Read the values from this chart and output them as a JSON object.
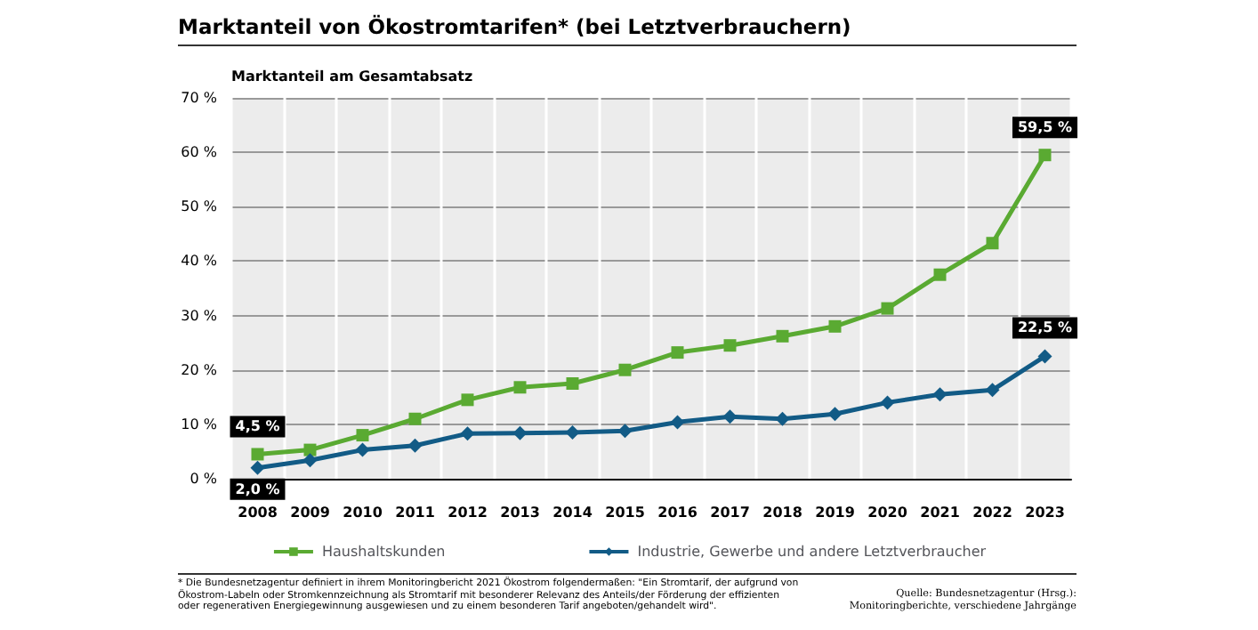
{
  "chart_data": {
    "type": "line",
    "title": "Marktanteil von Ökostromtarifen* (bei Letztverbrauchern)",
    "ylabel": "Marktanteil am Gesamtabsatz",
    "categories": [
      "2008",
      "2009",
      "2010",
      "2011",
      "2012",
      "2013",
      "2014",
      "2015",
      "2016",
      "2017",
      "2018",
      "2019",
      "2020",
      "2021",
      "2022",
      "2023"
    ],
    "series": [
      {
        "name": "Haushaltskunden",
        "color": "#5aaa32",
        "marker": "square",
        "values": [
          4.5,
          5.3,
          8.0,
          11.0,
          14.5,
          16.8,
          17.5,
          20.0,
          23.2,
          24.5,
          26.2,
          28.0,
          31.3,
          37.5,
          43.3,
          59.5
        ],
        "value_labels": [
          "4,5 %",
          null,
          null,
          null,
          null,
          null,
          null,
          null,
          null,
          null,
          null,
          null,
          null,
          null,
          null,
          "59,5 %"
        ]
      },
      {
        "name": "Industrie, Gewerbe und andere Letztverbraucher",
        "color": "#125b86",
        "marker": "diamond",
        "values": [
          2.0,
          3.4,
          5.3,
          6.1,
          8.3,
          8.4,
          8.5,
          8.8,
          10.4,
          11.4,
          11.0,
          11.9,
          14.0,
          15.5,
          16.3,
          22.5
        ],
        "value_labels": [
          "2,0 %",
          null,
          null,
          null,
          null,
          null,
          null,
          null,
          null,
          null,
          null,
          null,
          null,
          null,
          null,
          "22,5 %"
        ]
      }
    ],
    "ylim": [
      0,
      70
    ],
    "yticks": [
      {
        "value": 0,
        "label": "0 %"
      },
      {
        "value": 10,
        "label": "10 %"
      },
      {
        "value": 20,
        "label": "20 %"
      },
      {
        "value": 30,
        "label": "30 %"
      },
      {
        "value": 40,
        "label": "40 %"
      },
      {
        "value": 50,
        "label": "50 %"
      },
      {
        "value": 60,
        "label": "60 %"
      },
      {
        "value": 70,
        "label": "70 %"
      }
    ],
    "grid": true,
    "legend": "bottom",
    "line_style": "solid",
    "annotations": [
      "* Die Bundesnetzagentur definiert in ihrem Monitoringbericht 2021 Ökostrom folgendermaßen: \"Ein Stromtarif, der aufgrund von Ökostrom-Labeln oder Stromkennzeichnung als Stromtarif mit besonderer Relevanz des Anteils/der Förderung der effizienten oder regenerativen Energiegewinnung ausgewiesen und zu einem besonderen Tarif angeboten/gehandelt wird\".",
      "Quelle: Bundesnetzagentur (Hrsg.): Monitoringberichte, verschiedene Jahrgänge"
    ]
  }
}
